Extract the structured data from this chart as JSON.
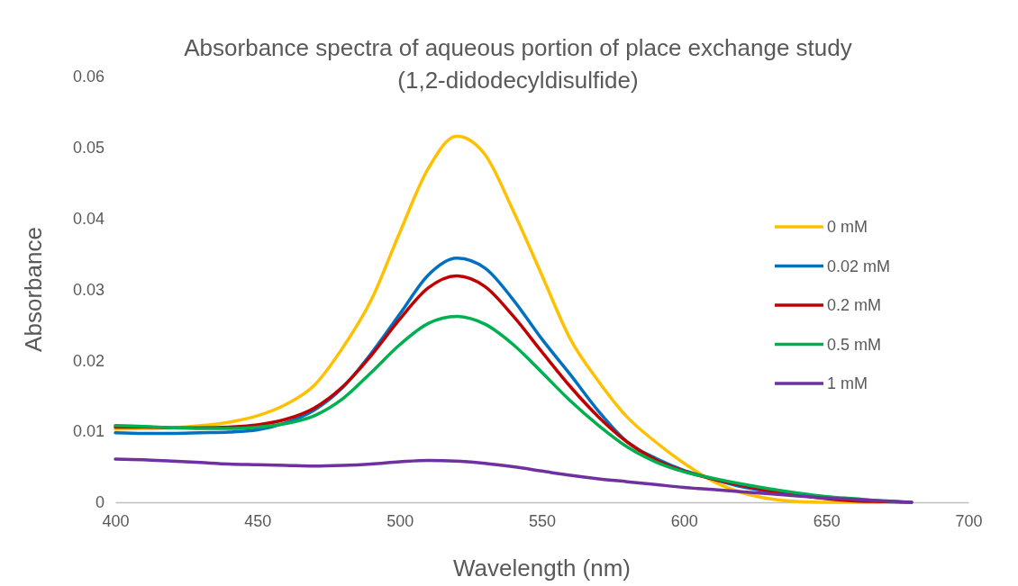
{
  "chart_data": {
    "type": "line",
    "title": "Absorbance spectra of aqueous portion of place exchange study (1,2-didodecyldisulfide)",
    "xlabel": "Wavelength (nm)",
    "ylabel": "Absorbance",
    "x": [
      400,
      410,
      420,
      430,
      440,
      450,
      460,
      470,
      480,
      490,
      500,
      510,
      520,
      530,
      540,
      550,
      560,
      570,
      580,
      590,
      600,
      610,
      620,
      630,
      640,
      650,
      660,
      670,
      680
    ],
    "series": [
      {
        "name": "0 mM",
        "color": "#ffc000",
        "values": [
          0.0103,
          0.0104,
          0.0105,
          0.0108,
          0.0113,
          0.0122,
          0.0138,
          0.0165,
          0.0218,
          0.0285,
          0.038,
          0.047,
          0.0516,
          0.049,
          0.041,
          0.032,
          0.023,
          0.017,
          0.012,
          0.0085,
          0.0055,
          0.003,
          0.0014,
          0.0005,
          0.0001,
          0,
          0,
          0,
          0
        ]
      },
      {
        "name": "0.02 mM",
        "color": "#0070c0",
        "values": [
          0.0098,
          0.0097,
          0.0097,
          0.0098,
          0.0099,
          0.0102,
          0.0112,
          0.013,
          0.0162,
          0.021,
          0.0265,
          0.032,
          0.0344,
          0.033,
          0.0285,
          0.023,
          0.018,
          0.0128,
          0.0085,
          0.0062,
          0.0045,
          0.0033,
          0.0022,
          0.0015,
          0.001,
          null,
          null,
          null,
          null
        ]
      },
      {
        "name": "0.2 mM",
        "color": "#c00000",
        "values": [
          0.0106,
          0.0106,
          0.0105,
          0.0105,
          0.0106,
          0.0109,
          0.0117,
          0.0133,
          0.0163,
          0.0207,
          0.0258,
          0.0302,
          0.0319,
          0.0304,
          0.0262,
          0.0212,
          0.0163,
          0.012,
          0.0085,
          0.006,
          0.0044,
          0.0033,
          0.0024,
          0.0016,
          0.001,
          0.0005,
          0.0002,
          0.0001,
          0
        ]
      },
      {
        "name": "0.5 mM",
        "color": "#00b050",
        "values": [
          0.0108,
          0.0107,
          0.0105,
          0.0104,
          0.0104,
          0.0106,
          0.0111,
          0.0122,
          0.0146,
          0.0183,
          0.0222,
          0.0252,
          0.0262,
          0.0251,
          0.0222,
          0.0183,
          0.0143,
          0.0108,
          0.0078,
          0.0057,
          0.0043,
          0.0034,
          0.0026,
          0.0019,
          0.0013,
          0.0008,
          0.0005,
          0.0002,
          0
        ]
      },
      {
        "name": "1 mM",
        "color": "#7030a0",
        "values": [
          0.0061,
          0.006,
          0.0058,
          0.0056,
          0.0054,
          0.0053,
          0.0052,
          0.0051,
          0.0052,
          0.0054,
          0.0057,
          0.0059,
          0.0058,
          0.0055,
          0.005,
          0.0044,
          0.0038,
          0.0033,
          0.0029,
          0.0025,
          0.0021,
          0.0018,
          0.0015,
          0.0012,
          0.0009,
          0.0006,
          0.0004,
          0.0002,
          0
        ]
      }
    ],
    "xlim": [
      400,
      700
    ],
    "xticks": [
      400,
      450,
      500,
      550,
      600,
      650,
      700
    ],
    "ylim": [
      0,
      0.06
    ],
    "yticks": [
      0,
      0.01,
      0.02,
      0.03,
      0.04,
      0.05,
      0.06
    ],
    "grid": false,
    "legend": "right",
    "marker": "none",
    "line_style": "solid"
  }
}
